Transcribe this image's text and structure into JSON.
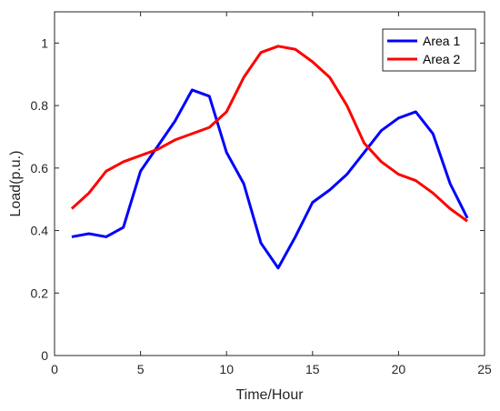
{
  "chart_data": {
    "type": "line",
    "title": "",
    "xlabel": "Time/Hour",
    "ylabel": "Load(p.u.)",
    "xlim": [
      0,
      25
    ],
    "ylim": [
      0,
      1.1
    ],
    "xticks": [
      0,
      5,
      10,
      15,
      20,
      25
    ],
    "yticks": [
      0,
      0.2,
      0.4,
      0.6,
      0.8,
      1
    ],
    "grid": false,
    "legend_position": "top-right",
    "x": [
      1,
      2,
      3,
      4,
      5,
      6,
      7,
      8,
      9,
      10,
      11,
      12,
      13,
      14,
      15,
      16,
      17,
      18,
      19,
      20,
      21,
      22,
      23,
      24
    ],
    "series": [
      {
        "name": "Area 1",
        "color": "#0000ff",
        "values": [
          0.38,
          0.39,
          0.38,
          0.41,
          0.59,
          0.67,
          0.75,
          0.85,
          0.83,
          0.65,
          0.55,
          0.36,
          0.28,
          0.38,
          0.49,
          0.53,
          0.58,
          0.65,
          0.72,
          0.76,
          0.78,
          0.71,
          0.55,
          0.44
        ]
      },
      {
        "name": "Area 2",
        "color": "#ff0000",
        "values": [
          0.47,
          0.52,
          0.59,
          0.62,
          0.64,
          0.66,
          0.69,
          0.71,
          0.73,
          0.78,
          0.89,
          0.97,
          0.99,
          0.98,
          0.94,
          0.89,
          0.8,
          0.68,
          0.62,
          0.58,
          0.56,
          0.52,
          0.47,
          0.43
        ]
      }
    ]
  }
}
